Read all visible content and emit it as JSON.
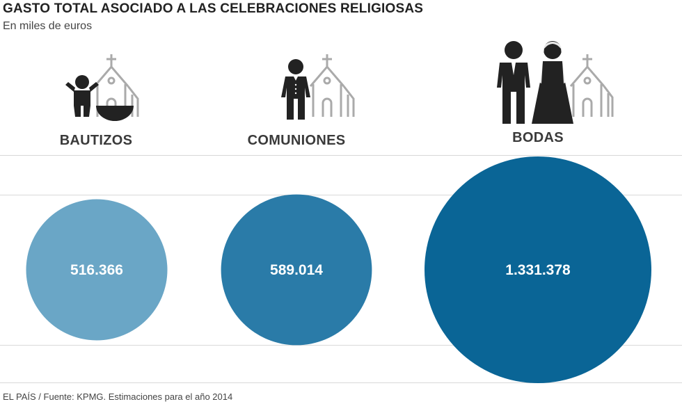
{
  "title": "GASTO TOTAL ASOCIADO A LAS CELEBRACIONES RELIGIOSAS",
  "subtitle": "En miles de euros",
  "source": "EL PAÍS / Fuente: KPMG. Estimaciones para el año 2014",
  "colors": {
    "bautizos": "#6aa6c6",
    "comuniones": "#2a7ba8",
    "bodas": "#0a6596",
    "icon_dark": "#222222",
    "icon_light": "#aaaaaa",
    "label_text": "#ffffff"
  },
  "icons": [
    "baby-baptism-font-church-icon",
    "first-communion-child-church-icon",
    "bride-groom-church-icon"
  ],
  "chart_data": {
    "type": "bubble",
    "title": "GASTO TOTAL ASOCIADO A LAS CELEBRACIONES RELIGIOSAS",
    "subtitle": "En miles de euros",
    "categories": [
      "BAUTIZOS",
      "COMUNIONES",
      "BODAS"
    ],
    "values": [
      516366,
      589014,
      1331378
    ],
    "value_labels": [
      "516.366",
      "589.014",
      "1.331.378"
    ],
    "unit": "miles de euros",
    "legend": "none"
  }
}
